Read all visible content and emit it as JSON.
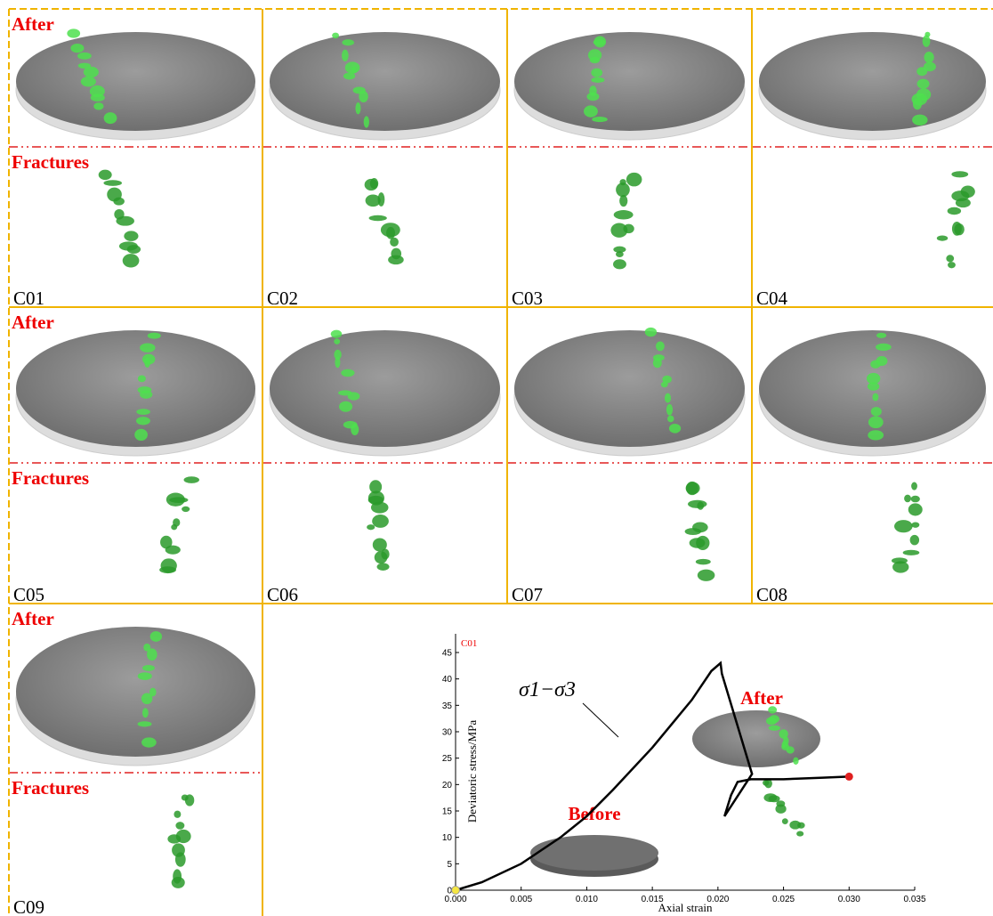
{
  "panels": [
    {
      "top": "After",
      "bottom": "Fractures",
      "label": "C01"
    },
    {
      "label": "C02"
    },
    {
      "label": "C03"
    },
    {
      "label": "C04"
    },
    {
      "top": "After",
      "bottom": "Fractures",
      "label": "C05"
    },
    {
      "label": "C06"
    },
    {
      "label": "C07"
    },
    {
      "label": "C08"
    },
    {
      "top": "After",
      "bottom": "Fractures",
      "label": "C09"
    }
  ],
  "chart_data": {
    "type": "line",
    "annotation": "C01",
    "curve_label": "σ1−σ3",
    "inset_before": "Before",
    "inset_after": "After",
    "xlabel": "Axial strain",
    "ylabel": "Deviatoric stress/MPa",
    "x": [
      0,
      0.002,
      0.005,
      0.008,
      0.01,
      0.012,
      0.015,
      0.018,
      0.0195,
      0.0202,
      0.0203,
      0.0226,
      0.0205,
      0.021,
      0.0215,
      0.0225,
      0.025,
      0.028,
      0.03
    ],
    "series": [
      {
        "name": "σ1−σ3",
        "color": "#000000",
        "values": [
          0,
          1.5,
          5,
          10,
          14,
          19,
          27,
          36,
          41.5,
          43,
          41,
          22,
          14,
          18,
          20.5,
          21,
          21,
          21.3,
          21.5
        ]
      }
    ],
    "xlim": [
      0,
      0.035
    ],
    "xticks": [
      {
        "value": 0,
        "label": "0.000"
      },
      {
        "value": 0.005,
        "label": "0.005"
      },
      {
        "value": 0.01,
        "label": "0.010"
      },
      {
        "value": 0.015,
        "label": "0.015"
      },
      {
        "value": 0.02,
        "label": "0.020"
      },
      {
        "value": 0.025,
        "label": "0.025"
      },
      {
        "value": 0.03,
        "label": "0.030"
      },
      {
        "value": 0.035,
        "label": "0.035"
      }
    ],
    "ylim": [
      0,
      45
    ],
    "yticks": [
      0,
      5,
      10,
      15,
      20,
      25,
      30,
      35,
      40,
      45
    ]
  }
}
